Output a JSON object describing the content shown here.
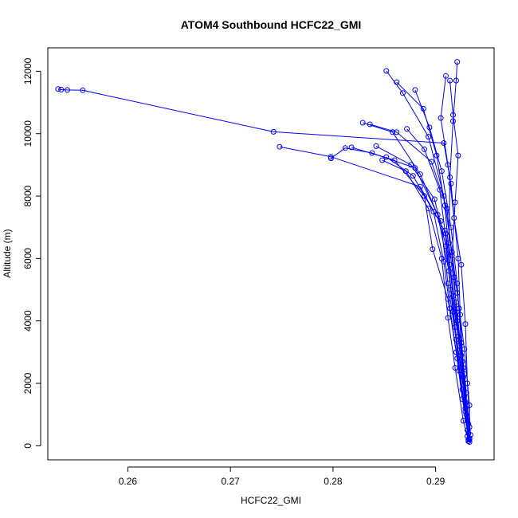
{
  "chart_data": {
    "type": "scatter",
    "title": "ATOM4 Southbound HCFC22_GMI",
    "xlabel": "HCFC22_GMI",
    "ylabel": "Altitude (m)",
    "xlim": [
      0.2522,
      0.2957
    ],
    "ylim": [
      -450,
      12750
    ],
    "x_ticks": [
      0.26,
      0.27,
      0.28,
      0.29
    ],
    "x_tick_labels": [
      "0.26",
      "0.27",
      "0.28",
      "0.29"
    ],
    "y_ticks": [
      0,
      2000,
      4000,
      6000,
      8000,
      10000,
      12000
    ],
    "y_tick_labels": [
      "0",
      "2000",
      "4000",
      "6000",
      "8000",
      "10000",
      "12000"
    ],
    "grid": false,
    "marker": "open-circle",
    "line": true,
    "colors": {
      "series": "#0000ff",
      "axes": "#000000",
      "background": "#ffffff"
    },
    "series": [
      {
        "profile": 1,
        "points": [
          [
            0.2532,
            11430
          ],
          [
            0.2535,
            11410
          ],
          [
            0.2541,
            11400
          ],
          [
            0.2556,
            11390
          ],
          [
            0.2742,
            10060
          ],
          [
            0.2908,
            9700
          ],
          [
            0.2915,
            8400
          ],
          [
            0.2922,
            6000
          ],
          [
            0.2924,
            4200
          ],
          [
            0.2927,
            2500
          ],
          [
            0.2931,
            900
          ],
          [
            0.2933,
            200
          ]
        ]
      },
      {
        "profile": 2,
        "points": [
          [
            0.2748,
            9580
          ],
          [
            0.2798,
            9260
          ],
          [
            0.2885,
            8300
          ],
          [
            0.291,
            6800
          ],
          [
            0.2917,
            4800
          ],
          [
            0.2925,
            2900
          ],
          [
            0.2929,
            1400
          ],
          [
            0.2931,
            300
          ]
        ]
      },
      {
        "profile": 3,
        "points": [
          [
            0.2798,
            9210
          ],
          [
            0.2812,
            9540
          ],
          [
            0.2838,
            9380
          ],
          [
            0.288,
            8900
          ],
          [
            0.2905,
            7200
          ],
          [
            0.2912,
            5200
          ],
          [
            0.292,
            3400
          ],
          [
            0.2926,
            1800
          ],
          [
            0.2932,
            400
          ]
        ]
      },
      {
        "profile": 4,
        "points": [
          [
            0.2829,
            10350
          ],
          [
            0.2858,
            10050
          ],
          [
            0.2885,
            8700
          ],
          [
            0.2902,
            7400
          ],
          [
            0.2913,
            5600
          ],
          [
            0.2919,
            3800
          ],
          [
            0.2928,
            1600
          ],
          [
            0.2932,
            150
          ]
        ]
      },
      {
        "profile": 5,
        "points": [
          [
            0.2852,
            12010
          ],
          [
            0.2868,
            11300
          ],
          [
            0.2893,
            9900
          ],
          [
            0.2908,
            8000
          ],
          [
            0.2916,
            6200
          ],
          [
            0.2923,
            4400
          ],
          [
            0.2927,
            2200
          ],
          [
            0.2933,
            600
          ]
        ]
      },
      {
        "profile": 6,
        "points": [
          [
            0.291,
            11850
          ],
          [
            0.2905,
            10500
          ],
          [
            0.2912,
            9000
          ],
          [
            0.2918,
            7300
          ],
          [
            0.2925,
            5800
          ],
          [
            0.2929,
            3900
          ],
          [
            0.2931,
            2000
          ],
          [
            0.2934,
            350
          ]
        ]
      },
      {
        "profile": 7,
        "points": [
          [
            0.2921,
            12300
          ],
          [
            0.292,
            11700
          ],
          [
            0.2917,
            10400
          ],
          [
            0.2914,
            8600
          ],
          [
            0.2913,
            6500
          ],
          [
            0.292,
            4600
          ],
          [
            0.2926,
            2700
          ],
          [
            0.2931,
            800
          ]
        ]
      },
      {
        "profile": 8,
        "points": [
          [
            0.2836,
            10300
          ],
          [
            0.2862,
            10050
          ],
          [
            0.2896,
            9100
          ],
          [
            0.2911,
            7600
          ],
          [
            0.2918,
            5400
          ],
          [
            0.2923,
            3200
          ],
          [
            0.2929,
            1200
          ],
          [
            0.2932,
            200
          ]
        ]
      },
      {
        "profile": 9,
        "points": [
          [
            0.2818,
            9560
          ],
          [
            0.286,
            9150
          ],
          [
            0.2889,
            8000
          ],
          [
            0.2897,
            6300
          ],
          [
            0.2912,
            4700
          ],
          [
            0.292,
            3000
          ],
          [
            0.2926,
            1500
          ],
          [
            0.2933,
            250
          ]
        ]
      },
      {
        "profile": 10,
        "points": [
          [
            0.2872,
            10150
          ],
          [
            0.2889,
            9500
          ],
          [
            0.2904,
            8200
          ],
          [
            0.2909,
            6900
          ],
          [
            0.2915,
            5000
          ],
          [
            0.2922,
            3500
          ],
          [
            0.293,
            1000
          ]
        ]
      },
      {
        "profile": 11,
        "points": [
          [
            0.2848,
            9150
          ],
          [
            0.2871,
            8800
          ],
          [
            0.2893,
            7600
          ],
          [
            0.2906,
            6000
          ],
          [
            0.2912,
            4100
          ],
          [
            0.2919,
            2500
          ],
          [
            0.2927,
            800
          ],
          [
            0.2932,
            150
          ]
        ]
      },
      {
        "profile": 12,
        "points": [
          [
            0.288,
            11400
          ],
          [
            0.2894,
            10200
          ],
          [
            0.2906,
            8800
          ],
          [
            0.2915,
            7000
          ],
          [
            0.2921,
            5200
          ],
          [
            0.2925,
            3300
          ],
          [
            0.293,
            1700
          ]
        ]
      },
      {
        "profile": 13,
        "points": [
          [
            0.2842,
            9600
          ],
          [
            0.2876,
            9000
          ],
          [
            0.2899,
            7900
          ],
          [
            0.291,
            6400
          ],
          [
            0.2917,
            4300
          ],
          [
            0.2923,
            2400
          ],
          [
            0.2931,
            500
          ]
        ]
      },
      {
        "profile": 14,
        "points": [
          [
            0.2914,
            11700
          ],
          [
            0.2917,
            10600
          ],
          [
            0.2922,
            9300
          ],
          [
            0.2919,
            7800
          ],
          [
            0.2916,
            6100
          ],
          [
            0.2921,
            4900
          ],
          [
            0.2928,
            3100
          ],
          [
            0.2933,
            1300
          ],
          [
            0.2933,
            120
          ]
        ]
      },
      {
        "profile": 15,
        "points": [
          [
            0.2862,
            11650
          ],
          [
            0.2888,
            10800
          ],
          [
            0.2901,
            9300
          ],
          [
            0.2909,
            7700
          ],
          [
            0.2914,
            5800
          ],
          [
            0.2921,
            4000
          ],
          [
            0.2928,
            2300
          ],
          [
            0.2932,
            700
          ]
        ]
      },
      {
        "profile": 16,
        "points": [
          [
            0.2852,
            9250
          ],
          [
            0.2878,
            8650
          ],
          [
            0.2898,
            7500
          ],
          [
            0.2908,
            5900
          ],
          [
            0.2914,
            4400
          ],
          [
            0.2921,
            2800
          ],
          [
            0.2929,
            1100
          ],
          [
            0.2933,
            220
          ]
        ]
      }
    ]
  }
}
